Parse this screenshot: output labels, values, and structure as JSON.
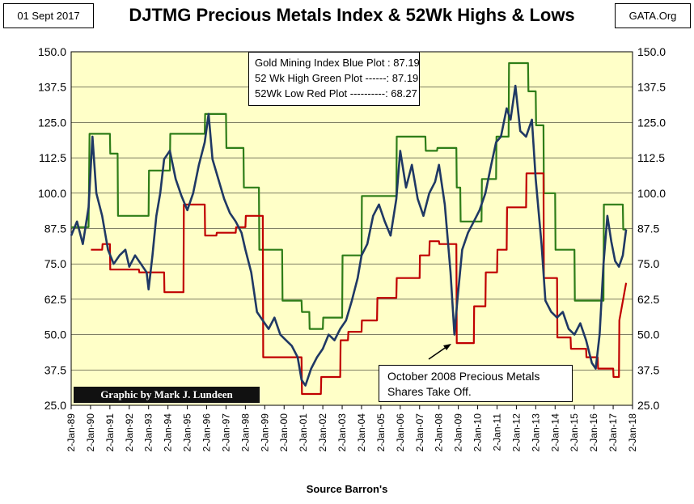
{
  "date_label": "01 Sept 2017",
  "source_label": "GATA.Org",
  "credit": "Graphic by Mark J. Lundeen",
  "annotation": {
    "line1": "October 2008 Precious Metals",
    "line2": "Shares Take Off."
  },
  "legend": {
    "blue": "Gold Mining Index Blue Plot : 87.19",
    "green": "52 Wk High  Green Plot ------: 87.19",
    "red": "52Wk Low  Red Plot ----------: 68.27"
  },
  "colors": {
    "plot_background": "#ffffc8",
    "index_line": "#1f3864",
    "high_line": "#2e7d18",
    "low_line": "#c00000",
    "grid": "#000000"
  },
  "chart_data": {
    "type": "line",
    "title": "DJTMG Precious Metals Index & 52Wk Highs & Lows",
    "xlabel": "Source Barron's",
    "ylabel": "",
    "ylim": [
      25,
      150
    ],
    "y_ticks": [
      "25.0",
      "37.5",
      "50.0",
      "62.5",
      "75.0",
      "87.5",
      "100.0",
      "112.5",
      "125.0",
      "137.5",
      "150.0"
    ],
    "x_ticks": [
      "2-Jan-89",
      "2-Jan-90",
      "2-Jan-91",
      "2-Jan-92",
      "2-Jan-93",
      "2-Jan-94",
      "2-Jan-95",
      "2-Jan-96",
      "2-Jan-97",
      "2-Jan-98",
      "2-Jan-99",
      "2-Jan-00",
      "2-Jan-01",
      "2-Jan-02",
      "2-Jan-03",
      "2-Jan-04",
      "2-Jan-05",
      "2-Jan-06",
      "2-Jan-07",
      "2-Jan-08",
      "2-Jan-09",
      "2-Jan-10",
      "2-Jan-11",
      "2-Jan-12",
      "2-Jan-13",
      "2-Jan-14",
      "2-Jan-15",
      "2-Jan-16",
      "2-Jan-17",
      "2-Jan-18"
    ],
    "grid": "horizontal",
    "series": [
      {
        "name": "Gold Mining Index Blue Plot",
        "x": [
          1989.0,
          1989.3,
          1989.6,
          1989.9,
          1990.1,
          1990.3,
          1990.6,
          1990.9,
          1991.2,
          1991.5,
          1991.8,
          1992.0,
          1992.3,
          1992.6,
          1992.9,
          1993.0,
          1993.2,
          1993.4,
          1993.6,
          1993.8,
          1994.1,
          1994.4,
          1994.7,
          1995.0,
          1995.3,
          1995.6,
          1995.9,
          1996.1,
          1996.3,
          1996.6,
          1996.9,
          1997.2,
          1997.5,
          1997.8,
          1998.0,
          1998.3,
          1998.6,
          1998.9,
          1999.2,
          1999.5,
          1999.8,
          2000.1,
          2000.4,
          2000.7,
          2000.9,
          2001.1,
          2001.4,
          2001.7,
          2002.0,
          2002.3,
          2002.6,
          2002.9,
          2003.2,
          2003.5,
          2003.8,
          2004.0,
          2004.3,
          2004.6,
          2004.9,
          2005.2,
          2005.5,
          2005.8,
          2006.0,
          2006.3,
          2006.6,
          2006.9,
          2007.2,
          2007.5,
          2007.8,
          2008.0,
          2008.3,
          2008.6,
          2008.8,
          2008.95,
          2009.2,
          2009.5,
          2009.8,
          2010.1,
          2010.4,
          2010.7,
          2010.95,
          2011.2,
          2011.5,
          2011.7,
          2011.95,
          2012.2,
          2012.5,
          2012.8,
          2013.0,
          2013.3,
          2013.5,
          2013.8,
          2014.1,
          2014.4,
          2014.7,
          2015.0,
          2015.3,
          2015.6,
          2015.9,
          2016.1,
          2016.3,
          2016.5,
          2016.7,
          2016.9,
          2017.1,
          2017.3,
          2017.5,
          2017.67
        ],
        "values": [
          85,
          90,
          82,
          95,
          120,
          100,
          92,
          80,
          75,
          78,
          80,
          74,
          78,
          75,
          72,
          66,
          78,
          92,
          100,
          112,
          115,
          105,
          99,
          94,
          100,
          110,
          118,
          128,
          112,
          105,
          98,
          93,
          90,
          86,
          80,
          72,
          58,
          55,
          52,
          56,
          50,
          48,
          46,
          42,
          34,
          32,
          38,
          42,
          45,
          50,
          48,
          52,
          55,
          62,
          70,
          78,
          82,
          92,
          96,
          90,
          85,
          98,
          115,
          102,
          110,
          98,
          92,
          100,
          104,
          110,
          96,
          72,
          50,
          62,
          80,
          86,
          90,
          94,
          100,
          110,
          118,
          120,
          130,
          126,
          138,
          122,
          120,
          126,
          105,
          82,
          62,
          58,
          56,
          58,
          52,
          50,
          54,
          48,
          40,
          38,
          50,
          75,
          92,
          83,
          76,
          74,
          78,
          87.19
        ]
      },
      {
        "name": "52 Wk High Green Plot",
        "x": [
          1989.0,
          1989.9,
          1989.95,
          1991.0,
          1991.02,
          1991.4,
          1991.42,
          1993.0,
          1993.02,
          1994.1,
          1994.12,
          1995.0,
          1995.3,
          1995.32,
          1995.9,
          1995.92,
          1997.0,
          1997.02,
          1997.9,
          1997.92,
          1998.7,
          1998.72,
          1999.9,
          1999.92,
          2000.9,
          2000.92,
          2001.3,
          2001.32,
          2002.0,
          2002.02,
          2003.0,
          2003.02,
          2004.0,
          2004.02,
          2005.8,
          2005.82,
          2006.0,
          2006.02,
          2007.3,
          2007.32,
          2007.9,
          2007.92,
          2008.9,
          2008.92,
          2009.1,
          2009.12,
          2010.2,
          2010.22,
          2010.95,
          2010.97,
          2011.6,
          2011.62,
          2012.6,
          2012.62,
          2013.0,
          2013.02,
          2013.4,
          2013.42,
          2014.0,
          2014.02,
          2015.0,
          2015.02,
          2015.5,
          2015.52,
          2016.5,
          2016.52,
          2017.5,
          2017.52,
          2017.67
        ],
        "values": [
          88,
          88,
          121,
          121,
          114,
          114,
          92,
          92,
          108,
          108,
          121,
          121,
          121,
          121,
          121,
          128,
          128,
          116,
          116,
          102,
          102,
          80,
          80,
          62,
          62,
          58,
          58,
          52,
          52,
          56,
          56,
          78,
          78,
          99,
          99,
          120,
          120,
          120,
          120,
          115,
          115,
          116,
          116,
          102,
          102,
          90,
          90,
          105,
          105,
          120,
          120,
          146,
          146,
          136,
          136,
          124,
          124,
          100,
          100,
          80,
          80,
          62,
          62,
          62,
          62,
          96,
          96,
          87.19,
          87.19
        ]
      },
      {
        "name": "52Wk Low Red Plot",
        "x": [
          1989.0,
          1990.0,
          1990.02,
          1990.6,
          1990.62,
          1991.0,
          1991.02,
          1992.5,
          1992.52,
          1993.8,
          1993.82,
          1994.8,
          1994.82,
          1995.9,
          1995.92,
          1996.5,
          1996.52,
          1997.5,
          1997.52,
          1998.0,
          1998.02,
          1998.9,
          1998.92,
          2000.9,
          2000.92,
          2001.9,
          2001.92,
          2002.9,
          2002.92,
          2003.3,
          2003.32,
          2004.0,
          2004.02,
          2004.8,
          2004.82,
          2005.8,
          2005.82,
          2007.0,
          2007.02,
          2007.5,
          2007.52,
          2008.0,
          2008.02,
          2008.9,
          2008.92,
          2009.8,
          2009.82,
          2010.4,
          2010.42,
          2011.0,
          2011.02,
          2011.5,
          2011.52,
          2012.5,
          2012.52,
          2013.4,
          2013.42,
          2014.1,
          2014.12,
          2014.8,
          2014.82,
          2015.6,
          2015.62,
          2016.2,
          2016.22,
          2017.0,
          2017.02,
          2017.3,
          2017.32,
          2017.67
        ],
        "values": [
          null,
          null,
          80,
          80,
          82,
          82,
          73,
          73,
          72,
          72,
          65,
          65,
          96,
          96,
          85,
          85,
          86,
          86,
          88,
          88,
          92,
          92,
          42,
          42,
          29,
          29,
          35,
          35,
          48,
          48,
          51,
          51,
          55,
          55,
          63,
          63,
          70,
          70,
          78,
          78,
          83,
          83,
          82,
          82,
          47,
          47,
          60,
          60,
          72,
          72,
          80,
          80,
          95,
          95,
          107,
          107,
          70,
          70,
          49,
          49,
          45,
          45,
          42,
          42,
          38,
          38,
          35,
          35,
          55,
          68.27
        ]
      }
    ]
  }
}
